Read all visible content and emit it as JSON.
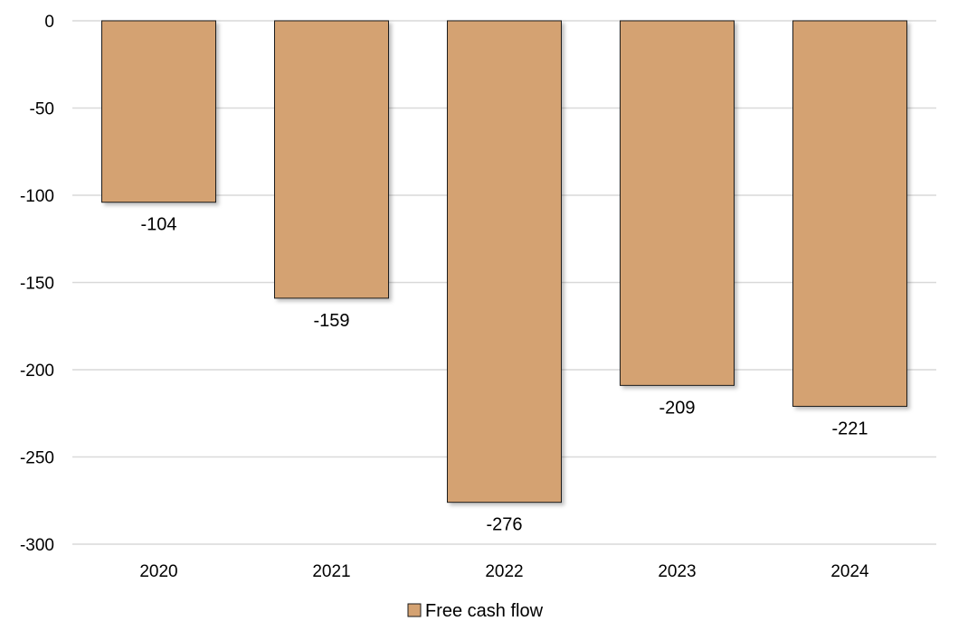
{
  "chart_data": {
    "type": "bar",
    "categories": [
      "2020",
      "2021",
      "2022",
      "2023",
      "2024"
    ],
    "series": [
      {
        "name": "Free cash flow",
        "values": [
          -104,
          -159,
          -276,
          -209,
          -221
        ]
      }
    ],
    "data_labels": [
      "-104",
      "-159",
      "-276",
      "-209",
      "-221"
    ],
    "title": "",
    "xlabel": "",
    "ylabel": "",
    "ylim": [
      -300,
      0
    ],
    "yticks": [
      0,
      -50,
      -100,
      -150,
      -200,
      -250,
      -300
    ],
    "ytick_labels": [
      "0",
      "-50",
      "-100",
      "-150",
      "-200",
      "-250",
      "-300"
    ],
    "grid": true,
    "legend_position": "bottom-center",
    "colors": {
      "bar": "#D4A272",
      "bar_border": "#1a1a1a",
      "grid": "#D9D9D9"
    }
  }
}
